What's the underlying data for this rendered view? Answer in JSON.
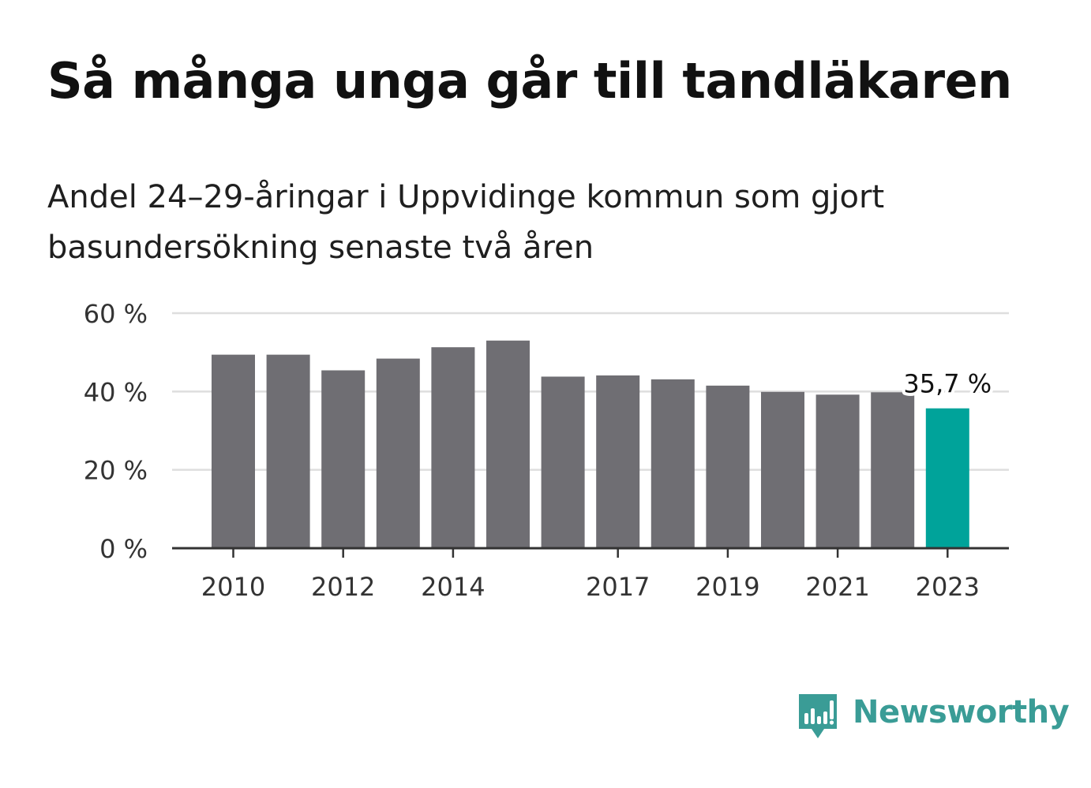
{
  "title": "Så många unga går till tandläkaren",
  "subtitle": "Andel 24–29-åringar i Uppvidinge kommun som gjort basundersökning senaste två åren",
  "brand": {
    "name": "Newsworthy",
    "icon": "newsworthy-bars-icon",
    "color": "#3a9c96"
  },
  "chart_data": {
    "type": "bar",
    "categories": [
      "2010",
      "2011",
      "2012",
      "2013",
      "2014",
      "2015",
      "2016",
      "2017",
      "2018",
      "2019",
      "2020",
      "2021",
      "2022",
      "2023"
    ],
    "values": [
      49.4,
      49.4,
      45.4,
      48.4,
      51.3,
      53.0,
      43.8,
      44.1,
      43.1,
      41.5,
      39.9,
      39.2,
      39.8,
      35.7
    ],
    "x_tick_labels": [
      "2010",
      "2012",
      "2014",
      "2017",
      "2019",
      "2021",
      "2023"
    ],
    "y_ticks": [
      0,
      20,
      40,
      60
    ],
    "y_tick_labels": [
      "0 %",
      "20 %",
      "40 %",
      "60 %"
    ],
    "ylim": [
      0,
      60
    ],
    "annotation": {
      "category": "2023",
      "label": "35,7 %"
    },
    "colors": {
      "default": "#6f6e73",
      "highlight": "#00a39a"
    },
    "grid": true,
    "legend": "none"
  }
}
